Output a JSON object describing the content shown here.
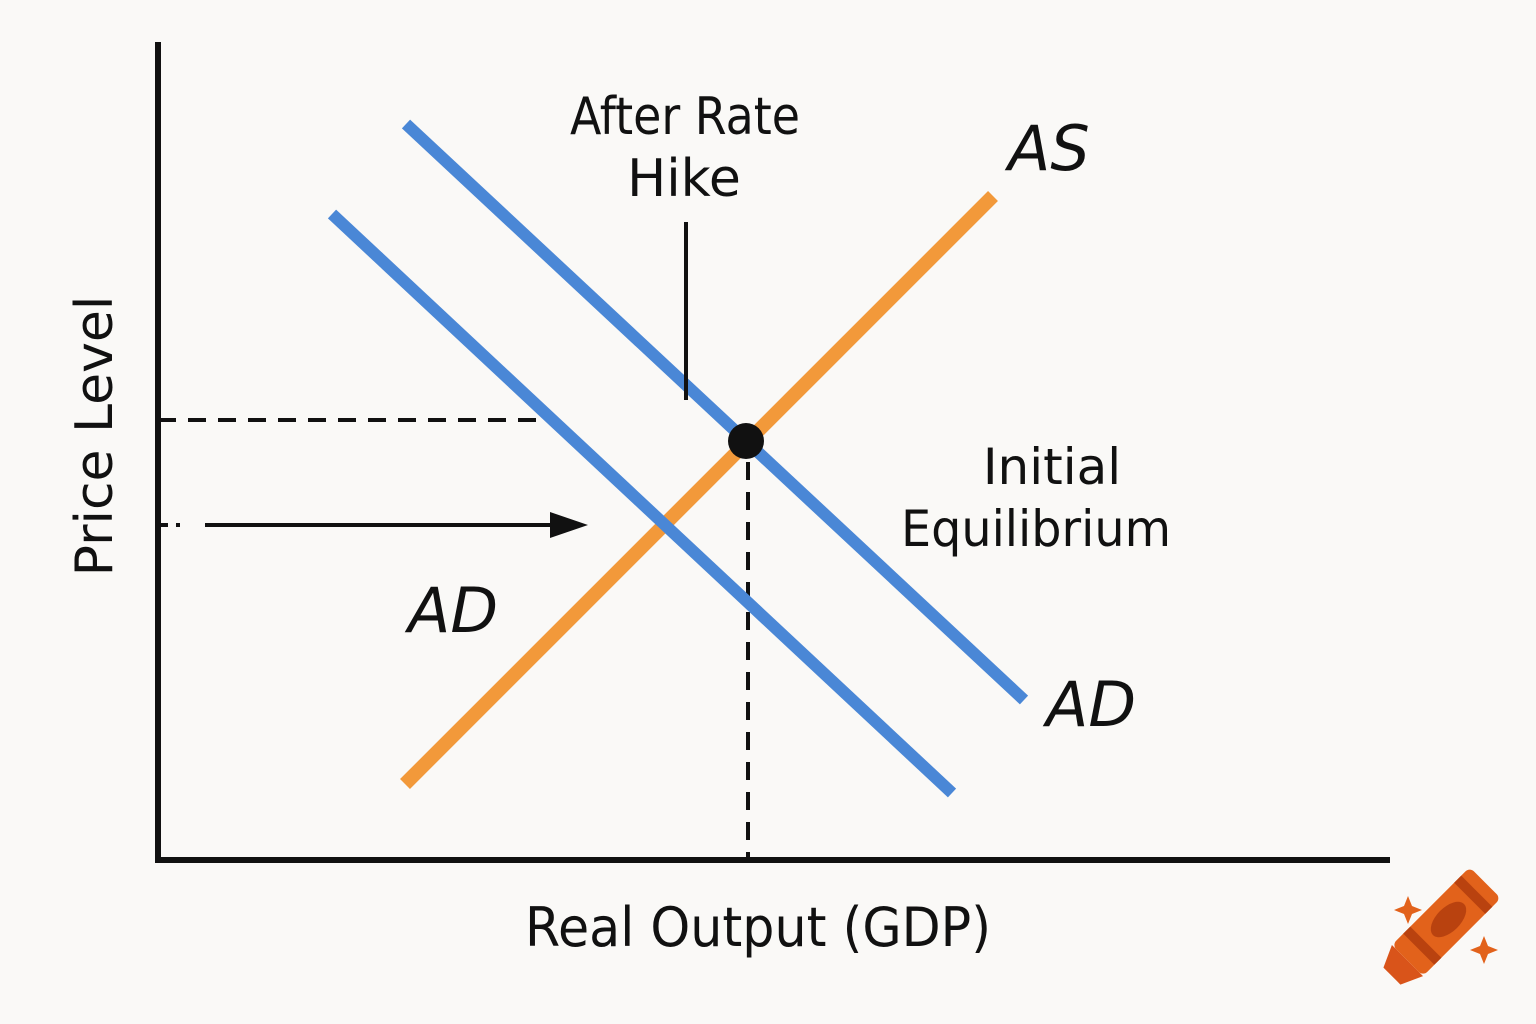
{
  "labels": {
    "y_axis": "Price Level",
    "x_axis": "Real Output (GDP)",
    "after_rate_hike_line1": "After Rate",
    "after_rate_hike_line2": "Hike",
    "as_curve": "AS",
    "ad_curve_left": "AD",
    "ad_curve_right": "AD",
    "initial_equilibrium_line1": "Initial",
    "initial_equilibrium_line2": "Equilibrium"
  },
  "colors": {
    "ad_curves": "#4a87d6",
    "as_curve": "#f2993a",
    "axes": "#111111",
    "background": "#faf9f7",
    "crayon": "#e2621b"
  },
  "icons": {
    "logo": "crayon-icon"
  }
}
